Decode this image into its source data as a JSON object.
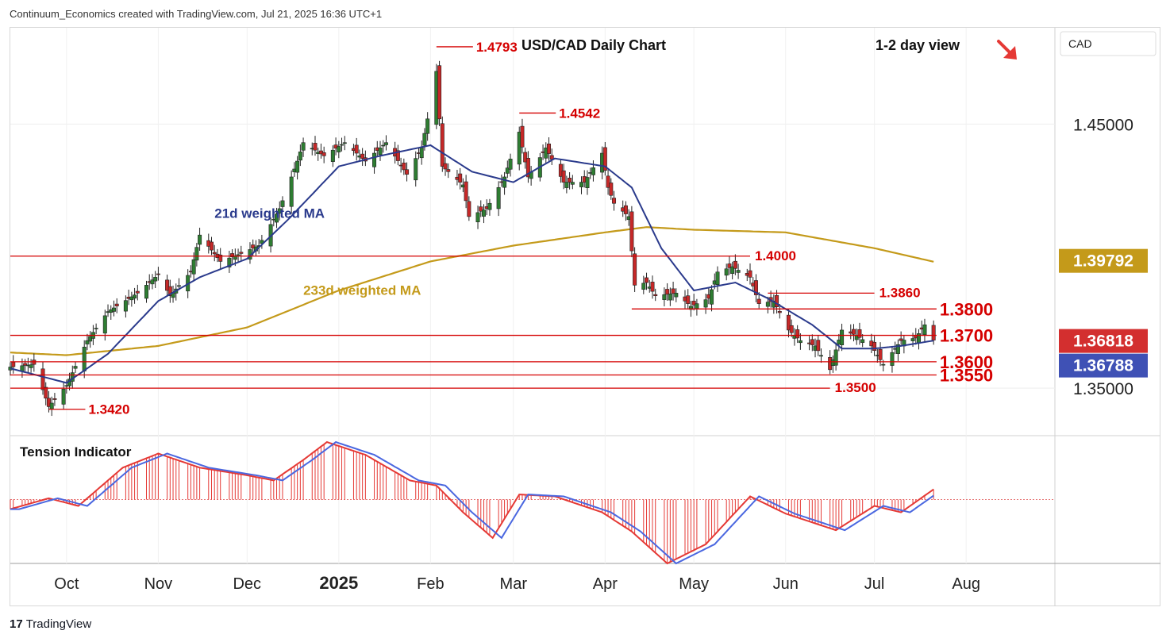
{
  "header": {
    "attribution": "Continuum_Economics created with TradingView.com, Jul 21, 2025 16:36 UTC+1"
  },
  "footer": {
    "logo_mark": "17",
    "logo_text": "TradingView"
  },
  "colors": {
    "up": "#2e7d32",
    "down": "#c62828",
    "level": "#d50000",
    "ma21": "#2a3a8c",
    "ma233": "#c49a1a",
    "tension_blue": "#4a67e0",
    "tension_red": "#e53935",
    "price_label_red": "#d32f2f",
    "price_label_blue": "#3f51b5",
    "ma233_label_bg": "#c49a1a",
    "arrow": "#e53935"
  },
  "chart_data": [
    {
      "type": "candlestick",
      "title": "USD/CAD Daily Chart",
      "subtitle": "1-2 day view",
      "outlook_arrow": "down-right-arrow",
      "currency_label": "CAD",
      "x_ticks": [
        "Oct",
        "Nov",
        "Dec",
        "2025",
        "Feb",
        "Mar",
        "Apr",
        "May",
        "Jun",
        "Jul",
        "Aug"
      ],
      "x_tick_dates": [
        "2024-10-01",
        "2024-11-01",
        "2024-12-01",
        "2025-01-01",
        "2025-02-01",
        "2025-03-01",
        "2025-04-01",
        "2025-05-01",
        "2025-06-01",
        "2025-07-01",
        "2025-08-01"
      ],
      "x_range": [
        "2024-09-12",
        "2025-08-31"
      ],
      "ylim": [
        1.332,
        1.4865
      ],
      "y_ticks": [
        {
          "label": "1.45000",
          "value": 1.45
        },
        {
          "label": "1.35000",
          "value": 1.35
        }
      ],
      "price_labels": [
        {
          "label": "1.39792",
          "value": 1.39792,
          "kind": "ma233"
        },
        {
          "label": "1.36818",
          "value": 1.36818,
          "kind": "close"
        },
        {
          "label": "1.36788",
          "value": 1.36788,
          "kind": "bid"
        }
      ],
      "levels": [
        {
          "value": 1.4,
          "label": "1.4000",
          "from": "2024-09-12",
          "to": "2025-05-20",
          "label_at": "2025-05-20"
        },
        {
          "value": 1.386,
          "label": "1.3860",
          "from": "2025-05-26",
          "to": "2025-07-01",
          "label_at": "2025-07-01"
        },
        {
          "value": 1.38,
          "label": "1.3800",
          "from": "2025-04-10",
          "to": "2025-07-22",
          "label_at": "2025-07-22",
          "big": true
        },
        {
          "value": 1.37,
          "label": "1.3700",
          "from": "2024-09-12",
          "to": "2025-07-22",
          "label_at": "2025-07-22",
          "big": true
        },
        {
          "value": 1.36,
          "label": "1.3600",
          "from": "2024-09-12",
          "to": "2025-07-22",
          "label_at": "2025-07-22",
          "big": true
        },
        {
          "value": 1.355,
          "label": "1.3550",
          "from": "2024-09-12",
          "to": "2025-07-22",
          "label_at": "2025-07-22",
          "big": true
        },
        {
          "value": 1.35,
          "label": "1.3500",
          "from": "2024-09-12",
          "to": "2025-06-16",
          "label_at": "2025-06-16"
        }
      ],
      "callouts": [
        {
          "label": "1.4793",
          "value": 1.4793,
          "date": "2025-02-03"
        },
        {
          "label": "1.4542",
          "value": 1.4542,
          "date": "2025-03-03"
        },
        {
          "label": "1.3420",
          "value": 1.342,
          "date": "2024-09-25"
        }
      ],
      "series_labels": [
        {
          "name": "21d weighted MA",
          "date": "2024-11-20",
          "value": 1.4145,
          "kind": "ma21"
        },
        {
          "name": "233d weighted MA",
          "date": "2024-12-20",
          "value": 1.3853,
          "kind": "ma233"
        }
      ],
      "ohlc_keypoints": [
        [
          "2024-09-12",
          1.358
        ],
        [
          "2024-09-20",
          1.359
        ],
        [
          "2024-09-25",
          1.343
        ],
        [
          "2024-10-01",
          1.351
        ],
        [
          "2024-10-08",
          1.368
        ],
        [
          "2024-10-15",
          1.379
        ],
        [
          "2024-10-25",
          1.386
        ],
        [
          "2024-11-01",
          1.393
        ],
        [
          "2024-11-05",
          1.385
        ],
        [
          "2024-11-12",
          1.394
        ],
        [
          "2024-11-15",
          1.408
        ],
        [
          "2024-11-22",
          1.398
        ],
        [
          "2024-11-29",
          1.401
        ],
        [
          "2024-12-05",
          1.404
        ],
        [
          "2024-12-12",
          1.418
        ],
        [
          "2024-12-18",
          1.436
        ],
        [
          "2024-12-20",
          1.443
        ],
        [
          "2024-12-27",
          1.438
        ],
        [
          "2025-01-03",
          1.443
        ],
        [
          "2025-01-10",
          1.436
        ],
        [
          "2025-01-17",
          1.443
        ],
        [
          "2025-01-24",
          1.431
        ],
        [
          "2025-01-29",
          1.441
        ],
        [
          "2025-01-31",
          1.452
        ],
        [
          "2025-02-03",
          1.47
        ],
        [
          "2025-02-05",
          1.434
        ],
        [
          "2025-02-12",
          1.427
        ],
        [
          "2025-02-14",
          1.415
        ],
        [
          "2025-02-20",
          1.418
        ],
        [
          "2025-02-26",
          1.43
        ],
        [
          "2025-03-03",
          1.447
        ],
        [
          "2025-03-06",
          1.43
        ],
        [
          "2025-03-12",
          1.441
        ],
        [
          "2025-03-18",
          1.428
        ],
        [
          "2025-03-25",
          1.428
        ],
        [
          "2025-03-31",
          1.439
        ],
        [
          "2025-04-02",
          1.426
        ],
        [
          "2025-04-04",
          1.42
        ],
        [
          "2025-04-09",
          1.415
        ],
        [
          "2025-04-11",
          1.389
        ],
        [
          "2025-04-15",
          1.39
        ],
        [
          "2025-04-18",
          1.385
        ],
        [
          "2025-04-25",
          1.386
        ],
        [
          "2025-04-30",
          1.381
        ],
        [
          "2025-05-06",
          1.384
        ],
        [
          "2025-05-09",
          1.394
        ],
        [
          "2025-05-14",
          1.396
        ],
        [
          "2025-05-20",
          1.392
        ],
        [
          "2025-05-23",
          1.382
        ],
        [
          "2025-05-28",
          1.383
        ],
        [
          "2025-06-02",
          1.372
        ],
        [
          "2025-06-06",
          1.368
        ],
        [
          "2025-06-11",
          1.366
        ],
        [
          "2025-06-16",
          1.357
        ],
        [
          "2025-06-20",
          1.372
        ],
        [
          "2025-06-25",
          1.37
        ],
        [
          "2025-06-30",
          1.366
        ],
        [
          "2025-07-04",
          1.359
        ],
        [
          "2025-07-10",
          1.368
        ],
        [
          "2025-07-15",
          1.369
        ],
        [
          "2025-07-18",
          1.374
        ],
        [
          "2025-07-21",
          1.36818
        ]
      ],
      "ma21_keypoints": [
        [
          "2024-09-12",
          1.3575
        ],
        [
          "2024-10-01",
          1.352
        ],
        [
          "2024-10-15",
          1.363
        ],
        [
          "2024-11-01",
          1.383
        ],
        [
          "2024-11-15",
          1.392
        ],
        [
          "2024-12-01",
          1.399
        ],
        [
          "2024-12-15",
          1.414
        ],
        [
          "2025-01-01",
          1.434
        ],
        [
          "2025-01-15",
          1.438
        ],
        [
          "2025-02-01",
          1.442
        ],
        [
          "2025-02-15",
          1.432
        ],
        [
          "2025-03-01",
          1.428
        ],
        [
          "2025-03-15",
          1.437
        ],
        [
          "2025-04-01",
          1.434
        ],
        [
          "2025-04-10",
          1.426
        ],
        [
          "2025-04-20",
          1.403
        ],
        [
          "2025-05-01",
          1.387
        ],
        [
          "2025-05-15",
          1.39
        ],
        [
          "2025-05-26",
          1.384
        ],
        [
          "2025-06-10",
          1.374
        ],
        [
          "2025-06-20",
          1.365
        ],
        [
          "2025-07-01",
          1.365
        ],
        [
          "2025-07-10",
          1.366
        ],
        [
          "2025-07-21",
          1.368
        ]
      ],
      "ma233_keypoints": [
        [
          "2024-09-12",
          1.3635
        ],
        [
          "2024-10-01",
          1.3625
        ],
        [
          "2024-11-01",
          1.366
        ],
        [
          "2024-12-01",
          1.373
        ],
        [
          "2025-01-01",
          1.387
        ],
        [
          "2025-02-01",
          1.398
        ],
        [
          "2025-03-01",
          1.404
        ],
        [
          "2025-04-01",
          1.409
        ],
        [
          "2025-04-15",
          1.411
        ],
        [
          "2025-05-01",
          1.41
        ],
        [
          "2025-06-01",
          1.409
        ],
        [
          "2025-07-01",
          1.403
        ],
        [
          "2025-07-21",
          1.3979
        ]
      ]
    },
    {
      "type": "line",
      "title": "Tension Indicator",
      "ylim": [
        -1,
        1
      ],
      "zero": 0,
      "tension_keypoints": [
        [
          "2024-09-12",
          -0.15
        ],
        [
          "2024-09-25",
          0.02
        ],
        [
          "2024-10-05",
          -0.1
        ],
        [
          "2024-10-20",
          0.5
        ],
        [
          "2024-11-01",
          0.72
        ],
        [
          "2024-11-15",
          0.5
        ],
        [
          "2024-12-01",
          0.38
        ],
        [
          "2024-12-10",
          0.3
        ],
        [
          "2024-12-20",
          0.62
        ],
        [
          "2024-12-28",
          0.9
        ],
        [
          "2025-01-10",
          0.7
        ],
        [
          "2025-01-25",
          0.3
        ],
        [
          "2025-02-03",
          0.22
        ],
        [
          "2025-02-12",
          -0.2
        ],
        [
          "2025-02-22",
          -0.6
        ],
        [
          "2025-03-03",
          0.08
        ],
        [
          "2025-03-15",
          0.05
        ],
        [
          "2025-03-31",
          -0.2
        ],
        [
          "2025-04-10",
          -0.5
        ],
        [
          "2025-04-22",
          -1.0
        ],
        [
          "2025-05-05",
          -0.7
        ],
        [
          "2025-05-20",
          0.05
        ],
        [
          "2025-06-01",
          -0.22
        ],
        [
          "2025-06-18",
          -0.48
        ],
        [
          "2025-07-01",
          -0.1
        ],
        [
          "2025-07-10",
          -0.2
        ],
        [
          "2025-07-21",
          0.16
        ]
      ]
    }
  ]
}
